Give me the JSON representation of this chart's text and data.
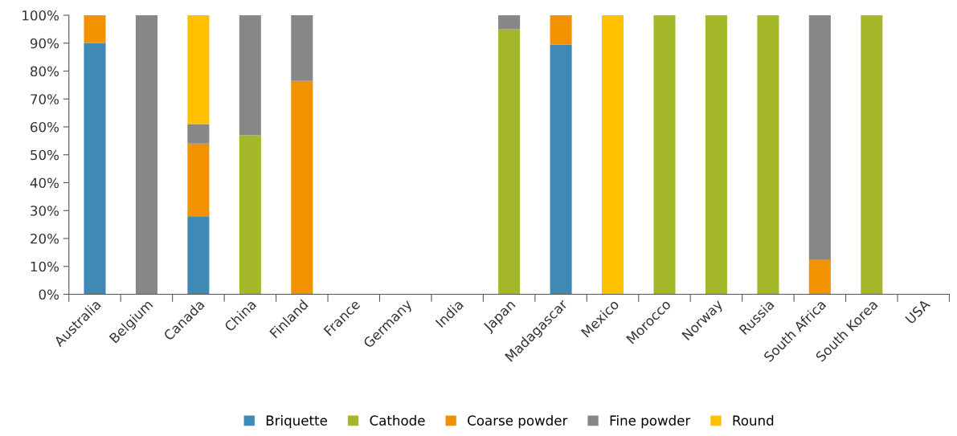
{
  "chart_data": {
    "type": "bar",
    "stacked": true,
    "categories": [
      "Australia",
      "Belgium",
      "Canada",
      "China",
      "Finland",
      "France",
      "Germany",
      "India",
      "Japan",
      "Madagascar",
      "Mexico",
      "Morocco",
      "Norway",
      "Russia",
      "South Africa",
      "South Korea",
      "USA"
    ],
    "series": [
      {
        "name": "Briquette",
        "color": "#3f8ab5",
        "values": [
          90,
          0,
          28,
          0,
          0,
          0,
          0,
          0,
          0,
          89.5,
          0,
          0,
          0,
          0,
          0,
          0,
          0
        ]
      },
      {
        "name": "Cathode",
        "color": "#a5b82a",
        "values": [
          0,
          0,
          0,
          57,
          0,
          0,
          0,
          0,
          95,
          0,
          0,
          100,
          100,
          100,
          0,
          100,
          0
        ]
      },
      {
        "name": "Coarse powder",
        "color": "#f39200",
        "values": [
          10,
          0,
          26,
          0,
          76.5,
          0,
          0,
          0,
          0,
          10.5,
          0,
          0,
          0,
          0,
          12.5,
          0,
          0
        ]
      },
      {
        "name": "Fine powder",
        "color": "#878787",
        "values": [
          0,
          100,
          7,
          43,
          23.5,
          0,
          0,
          0,
          5,
          0,
          0,
          0,
          0,
          0,
          87.5,
          0,
          0
        ]
      },
      {
        "name": "Round",
        "color": "#ffc000",
        "values": [
          0,
          0,
          39,
          0,
          0,
          0,
          0,
          0,
          0,
          0,
          100,
          0,
          0,
          0,
          0,
          0,
          0
        ]
      }
    ],
    "ylim": [
      0,
      100
    ],
    "yticks": [
      {
        "value": 0,
        "label": "0%"
      },
      {
        "value": 10,
        "label": "10%"
      },
      {
        "value": 20,
        "label": "20%"
      },
      {
        "value": 30,
        "label": "30%"
      },
      {
        "value": 40,
        "label": "40%"
      },
      {
        "value": 50,
        "label": "50%"
      },
      {
        "value": 60,
        "label": "60%"
      },
      {
        "value": 70,
        "label": "70%"
      },
      {
        "value": 80,
        "label": "80%"
      },
      {
        "value": 90,
        "label": "90%"
      },
      {
        "value": 100,
        "label": "100%"
      }
    ],
    "grid": false,
    "legend": "bottom"
  }
}
